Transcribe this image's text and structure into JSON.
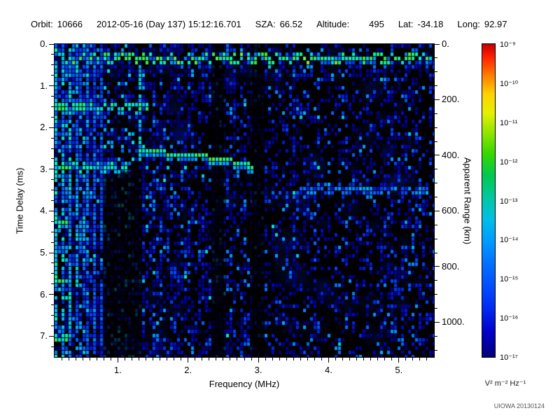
{
  "header": {
    "items": [
      {
        "label": "Orbit:",
        "value": "10666"
      },
      {
        "label": "",
        "value": "2012-05-16 (Day 137) 15:12:16.701"
      },
      {
        "label": "SZA:",
        "value": "66.52"
      },
      {
        "label": "Altitude:",
        "value": "495"
      },
      {
        "label": "Lat:",
        "value": "-34.18"
      },
      {
        "label": "Long:",
        "value": "92.97"
      }
    ]
  },
  "chart_data": {
    "type": "heatmap",
    "description": "Radar sounder ionogram: echo spectral density vs frequency and time delay, blue-to-green speckle on black background",
    "background": "#000000",
    "x_axis": {
      "label": "Frequency (MHz)",
      "min": 0.1,
      "max": 5.5,
      "minor_step": 0.1,
      "major": [
        {
          "v": 1,
          "t": "1."
        },
        {
          "v": 2,
          "t": "2."
        },
        {
          "v": 3,
          "t": "3."
        },
        {
          "v": 4,
          "t": "4."
        },
        {
          "v": 5,
          "t": "5."
        }
      ]
    },
    "y_axis_left": {
      "label": "Time Delay (ms)",
      "min": 0,
      "max": 7.5,
      "minor_step": 0.25,
      "major": [
        {
          "v": 0,
          "t": "0."
        },
        {
          "v": 1,
          "t": "1."
        },
        {
          "v": 2,
          "t": "2."
        },
        {
          "v": 3,
          "t": "3."
        },
        {
          "v": 4,
          "t": "4."
        },
        {
          "v": 5,
          "t": "5."
        },
        {
          "v": 6,
          "t": "6."
        },
        {
          "v": 7,
          "t": "7."
        }
      ]
    },
    "y_axis_right": {
      "label": "Apparent Range (km)",
      "km_per_ms": 150,
      "minor_step": 50,
      "major": [
        {
          "v": 0,
          "t": "0."
        },
        {
          "v": 200,
          "t": "200."
        },
        {
          "v": 400,
          "t": "400."
        },
        {
          "v": 600,
          "t": "600."
        },
        {
          "v": 800,
          "t": "800."
        },
        {
          "v": 1000,
          "t": "1000."
        }
      ]
    },
    "gaps": [
      [
        2.33,
        2.52
      ],
      [
        2.9,
        3.08
      ]
    ],
    "dark_regions": [
      {
        "f0": 0.8,
        "f1": 1.34,
        "t0": 3.05,
        "t1": 7.5
      }
    ],
    "features": [
      {
        "name": "surface-echo-band",
        "type": "hline",
        "t": 0.35,
        "f0": 0.1,
        "f1": 5.5,
        "thickness": 0.22,
        "intensity": 0.88
      },
      {
        "name": "plasma-harmonic-lines",
        "type": "vlines",
        "freqs": [
          0.14,
          0.23,
          0.32,
          0.41,
          0.5,
          0.59,
          0.68,
          0.77
        ],
        "t0": 0.1,
        "t1": 7.5,
        "intensity": 0.78
      },
      {
        "name": "echo-cusp-line",
        "type": "vline",
        "f": 1.31,
        "t0": 0.45,
        "t1": 2.5,
        "intensity": 0.7
      },
      {
        "name": "low-frequency-band-1",
        "type": "hline",
        "t": 1.5,
        "f0": 0.1,
        "f1": 1.45,
        "thickness": 0.18,
        "intensity": 0.8
      },
      {
        "name": "low-frequency-band-2",
        "type": "hline",
        "t": 2.98,
        "f0": 0.1,
        "f1": 1.12,
        "thickness": 0.18,
        "intensity": 0.72
      },
      {
        "name": "cyclotron-echoes",
        "type": "blobs",
        "delays": [
          1.5,
          2.95,
          4.3,
          5.68,
          7.08
        ],
        "f0": 0.1,
        "f1": 0.3,
        "intensity": 0.85
      },
      {
        "name": "ionosphere-echo-trace",
        "type": "trace",
        "points": [
          [
            1.33,
            2.52
          ],
          [
            1.7,
            2.62
          ],
          [
            2.1,
            2.68
          ],
          [
            2.55,
            2.78
          ],
          [
            2.95,
            2.95
          ]
        ],
        "intensity": 0.85
      },
      {
        "name": "faint-horizontal-streak",
        "type": "hline",
        "t": 3.52,
        "f0": 3.55,
        "f1": 5.45,
        "thickness": 0.1,
        "intensity": 0.55
      }
    ]
  },
  "colorbar": {
    "ticks": [
      "10⁻⁹",
      "10⁻¹⁰",
      "10⁻¹¹",
      "10⁻¹²",
      "10⁻¹³",
      "10⁻¹⁴",
      "10⁻¹⁵",
      "10⁻¹⁶",
      "10⁻¹⁷"
    ],
    "unit": "V² m⁻² Hz⁻¹",
    "gradient": [
      {
        "p": 0,
        "c": "#c00000"
      },
      {
        "p": 4,
        "c": "#ff1e00"
      },
      {
        "p": 10,
        "c": "#ff7d00"
      },
      {
        "p": 16,
        "c": "#ffd200"
      },
      {
        "p": 22,
        "c": "#e6f000"
      },
      {
        "p": 28,
        "c": "#96e600"
      },
      {
        "p": 35,
        "c": "#37d700"
      },
      {
        "p": 42,
        "c": "#00c850"
      },
      {
        "p": 49,
        "c": "#00c8a0"
      },
      {
        "p": 56,
        "c": "#00bee6"
      },
      {
        "p": 63,
        "c": "#009bff"
      },
      {
        "p": 70,
        "c": "#0073ff"
      },
      {
        "p": 78,
        "c": "#004bff"
      },
      {
        "p": 85,
        "c": "#0028f0"
      },
      {
        "p": 92,
        "c": "#0000c8"
      },
      {
        "p": 100,
        "c": "#000078"
      }
    ]
  },
  "footer": {
    "credit": "UIOWA 20130124"
  }
}
